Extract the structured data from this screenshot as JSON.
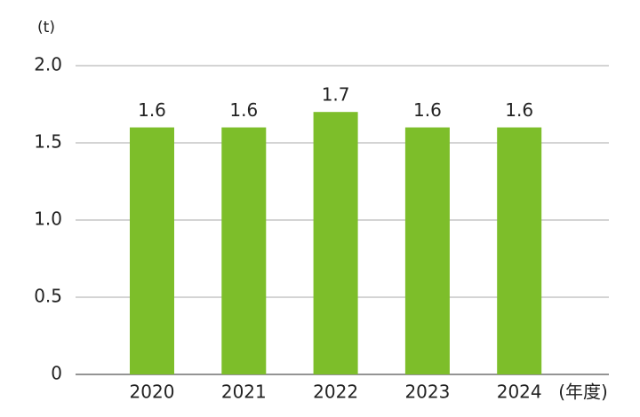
{
  "chart_data": {
    "type": "bar",
    "y_label": "(t)",
    "x_label": "(年度)",
    "categories": [
      "2020",
      "2021",
      "2022",
      "2023",
      "2024"
    ],
    "values": [
      1.6,
      1.6,
      1.7,
      1.6,
      1.6
    ],
    "color": "#7dbe2a",
    "ylim": [
      0,
      2
    ],
    "yticks": [
      0,
      0.5,
      {
        "value": 1,
        "label": "1.0"
      },
      1.5,
      {
        "value": 2,
        "label": "2.0"
      }
    ],
    "grid": true
  }
}
